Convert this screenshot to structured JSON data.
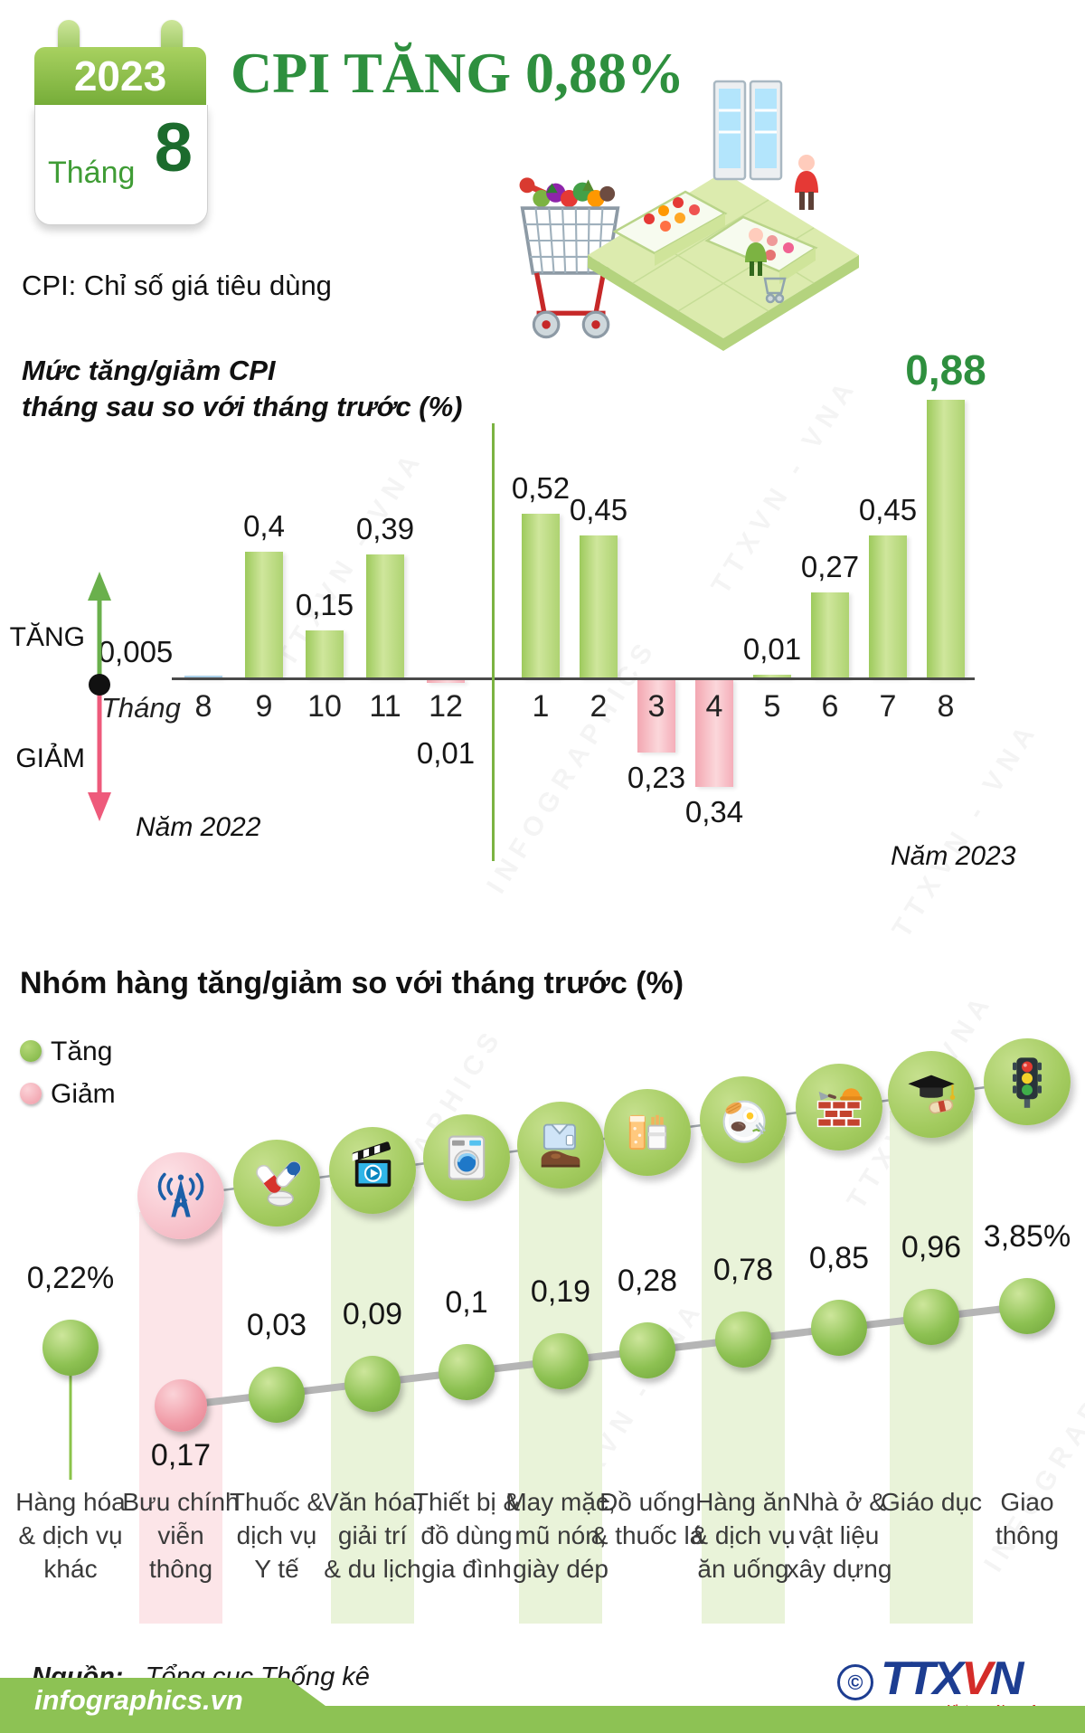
{
  "header": {
    "calendar": {
      "year": "2023",
      "month_word": "Tháng",
      "month_number": "8"
    },
    "title": "CPI TĂNG 0,88%",
    "subtitle": "CPI: Chỉ số giá tiêu dùng",
    "chart1_title_line1": "Mức tăng/giảm CPI",
    "chart1_title_line2": "tháng sau so với tháng trước (%)"
  },
  "chart_data": [
    {
      "type": "bar",
      "title": "Mức tăng/giảm CPI tháng sau so với tháng trước (%)",
      "x_axis_prefix": "Tháng",
      "categories": [
        "8",
        "9",
        "10",
        "11",
        "12",
        "1",
        "2",
        "3",
        "4",
        "5",
        "6",
        "7",
        "8"
      ],
      "values": [
        0.005,
        0.4,
        0.15,
        0.39,
        -0.01,
        0.52,
        0.45,
        -0.23,
        -0.34,
        0.01,
        0.27,
        0.45,
        0.88
      ],
      "value_labels": [
        "0,005",
        "0,4",
        "0,15",
        "0,39",
        "0,01",
        "0,52",
        "0,45",
        "0,23",
        "0,34",
        "0,01",
        "0,27",
        "0,45",
        "0,88"
      ],
      "bar_styles": [
        "blue",
        "green",
        "green",
        "green",
        "pink",
        "green",
        "green",
        "pink",
        "pink",
        "green",
        "green",
        "green",
        "green"
      ],
      "group_labels": {
        "left": "Năm 2022",
        "right": "Năm 2023"
      },
      "direction_legend": {
        "up": "TĂNG",
        "down": "GIẢM"
      },
      "ylim": [
        -0.4,
        0.95
      ],
      "grid": false,
      "legend_position": "left"
    },
    {
      "type": "line",
      "title": "Nhóm hàng tăng/giảm so với tháng trước (%)",
      "legend": [
        {
          "label": "Tăng",
          "color": "#7cb342"
        },
        {
          "label": "Giảm",
          "color": "#f49ca8"
        }
      ],
      "items": [
        {
          "label": "Hàng hóa & dịch vụ khác",
          "label_lines": [
            "Hàng hóa",
            "& dịch vụ",
            "khác"
          ],
          "value": 0.22,
          "value_label": "0,22%",
          "direction": "up",
          "band": "none",
          "icon": "none"
        },
        {
          "label": "Bưu chính viễn thông",
          "label_lines": [
            "Bưu chính",
            "viễn",
            "thông"
          ],
          "value": -0.17,
          "value_label": "0,17",
          "direction": "down",
          "band": "pink",
          "icon": "antenna-icon"
        },
        {
          "label": "Thuốc & dịch vụ Y tế",
          "label_lines": [
            "Thuốc &",
            "dịch vụ",
            "Y tế"
          ],
          "value": 0.03,
          "value_label": "0,03",
          "direction": "up",
          "band": "none",
          "icon": "medicine-icon"
        },
        {
          "label": "Văn hóa, giải trí & du lịch",
          "label_lines": [
            "Văn hóa,",
            "giải trí",
            "& du lịch"
          ],
          "value": 0.09,
          "value_label": "0,09",
          "direction": "up",
          "band": "green",
          "icon": "cinema-icon"
        },
        {
          "label": "Thiết bị & đồ dùng gia đình",
          "label_lines": [
            "Thiết bị &",
            "đồ dùng",
            "gia đình"
          ],
          "value": 0.1,
          "value_label": "0,1",
          "direction": "up",
          "band": "none",
          "icon": "washing-machine-icon"
        },
        {
          "label": "May mặc, mũ nón, giày dép",
          "label_lines": [
            "May mặc,",
            "mũ nón,",
            "giày dép"
          ],
          "value": 0.19,
          "value_label": "0,19",
          "direction": "up",
          "band": "green",
          "icon": "clothing-icon"
        },
        {
          "label": "Đồ uống & thuốc lá",
          "label_lines": [
            "Đồ uống",
            "& thuốc lá"
          ],
          "value": 0.28,
          "value_label": "0,28",
          "direction": "up",
          "band": "none",
          "icon": "beverage-tobacco-icon"
        },
        {
          "label": "Hàng ăn & dịch vụ ăn uống",
          "label_lines": [
            "Hàng ăn",
            "& dịch vụ",
            "ăn uống"
          ],
          "value": 0.78,
          "value_label": "0,78",
          "direction": "up",
          "band": "green",
          "icon": "food-icon"
        },
        {
          "label": "Nhà ở & vật liệu xây dựng",
          "label_lines": [
            "Nhà ở &",
            "vật liệu",
            "xây dựng"
          ],
          "value": 0.85,
          "value_label": "0,85",
          "direction": "up",
          "band": "none",
          "icon": "construction-icon"
        },
        {
          "label": "Giáo dục",
          "label_lines": [
            "Giáo dục"
          ],
          "value": 0.96,
          "value_label": "0,96",
          "direction": "up",
          "band": "green",
          "icon": "education-icon"
        },
        {
          "label": "Giao thông",
          "label_lines": [
            "Giao",
            "thông"
          ],
          "value": 3.85,
          "value_label": "3,85%",
          "direction": "up",
          "band": "none",
          "icon": "traffic-light-icon"
        }
      ]
    }
  ],
  "watermarks": {
    "text1": "TTXVN - VNA",
    "text2": "INFOGRAPHICS"
  },
  "footer": {
    "source_label": "Nguồn:",
    "source_text": "Tổng cục Thống kê",
    "copyright_symbol": "©",
    "agency_abbr_1": "TTX",
    "agency_abbr_2": "V",
    "agency_abbr_3": "N",
    "agency_subtitle": "Vietnam News Agency",
    "website": "infographics.vn"
  },
  "colors": {
    "accent_green": "#2e8f3e",
    "bar_green": "#a8cf66",
    "bar_pink": "#f5aeb8",
    "bar_blue": "#a9cfe8",
    "band_green": "#e9f3d9",
    "band_pink": "#fce5e8",
    "footer_green": "#8dc254",
    "logo_blue": "#1d3d91",
    "logo_red": "#d42c29"
  }
}
